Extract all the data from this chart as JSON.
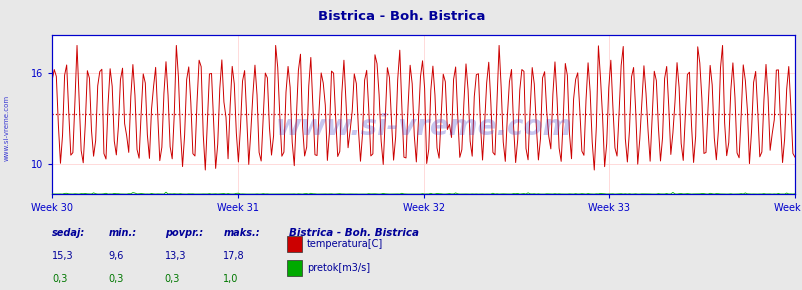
{
  "title": "Bistrica - Boh. Bistrica",
  "title_color": "#000099",
  "bg_color": "#e8e8e8",
  "plot_bg_color": "#ffffff",
  "grid_color": "#ffcccc",
  "axis_color": "#0000cc",
  "tick_label_color": "#0000cc",
  "week_labels": [
    "Week 30",
    "Week 31",
    "Week 32",
    "Week 33",
    "Week 34"
  ],
  "week_positions": [
    0,
    84,
    168,
    252,
    336
  ],
  "n_points": 360,
  "temp_min": 9.6,
  "temp_max": 17.8,
  "temp_avg": 13.3,
  "temp_current": 15.3,
  "flow_min": 0.3,
  "flow_max": 1.0,
  "flow_avg": 0.3,
  "flow_current": 0.3,
  "ylim_temp_min": 8.0,
  "ylim_temp_max": 18.5,
  "yticks_temp": [
    10,
    16
  ],
  "temp_color": "#cc0000",
  "flow_color": "#00aa00",
  "avg_line_color": "#cc0000",
  "watermark_text": "www.si-vreme.com",
  "watermark_color": "#4444cc",
  "watermark_alpha": 0.3,
  "sidebar_text": "www.si-vreme.com",
  "sidebar_color": "#0000cc",
  "legend_title": "Bistrica - Boh. Bistrica",
  "legend_items": [
    "temperatura[C]",
    "pretok[m3/s]"
  ],
  "legend_colors": [
    "#cc0000",
    "#00aa00"
  ],
  "stats_labels": [
    "sedaj:",
    "min.:",
    "povpr.:",
    "maks.:"
  ],
  "stats_temp": [
    "15,3",
    "9,6",
    "13,3",
    "17,8"
  ],
  "stats_flow": [
    "0,3",
    "0,3",
    "0,3",
    "1,0"
  ]
}
